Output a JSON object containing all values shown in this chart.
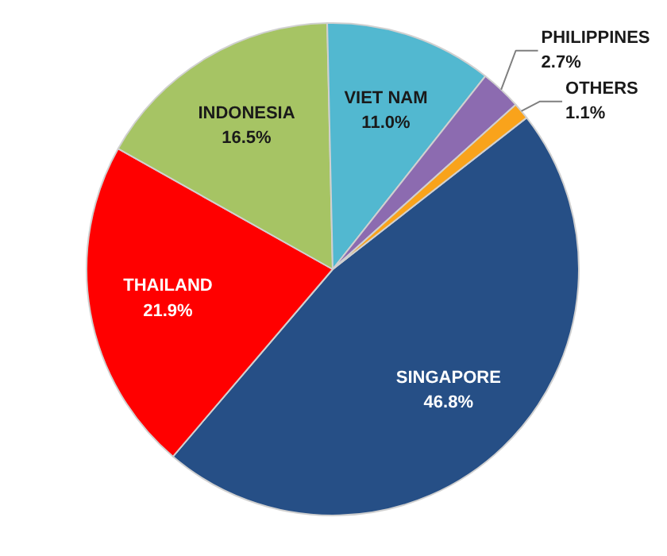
{
  "chart_data": {
    "type": "pie",
    "categories": [
      "SINGAPORE",
      "THAILAND",
      "INDONESIA",
      "VIET NAM",
      "PHILIPPINES",
      "OTHERS"
    ],
    "values": [
      46.8,
      21.9,
      16.5,
      11.0,
      2.7,
      1.1
    ],
    "colors": [
      "#264f86",
      "#ff0000",
      "#a6c464",
      "#52b8d0",
      "#8c6bb0",
      "#f9a31b"
    ],
    "value_labels": [
      "46.8%",
      "21.9%",
      "16.5%",
      "11.0%",
      "2.7%",
      "1.1%"
    ]
  }
}
